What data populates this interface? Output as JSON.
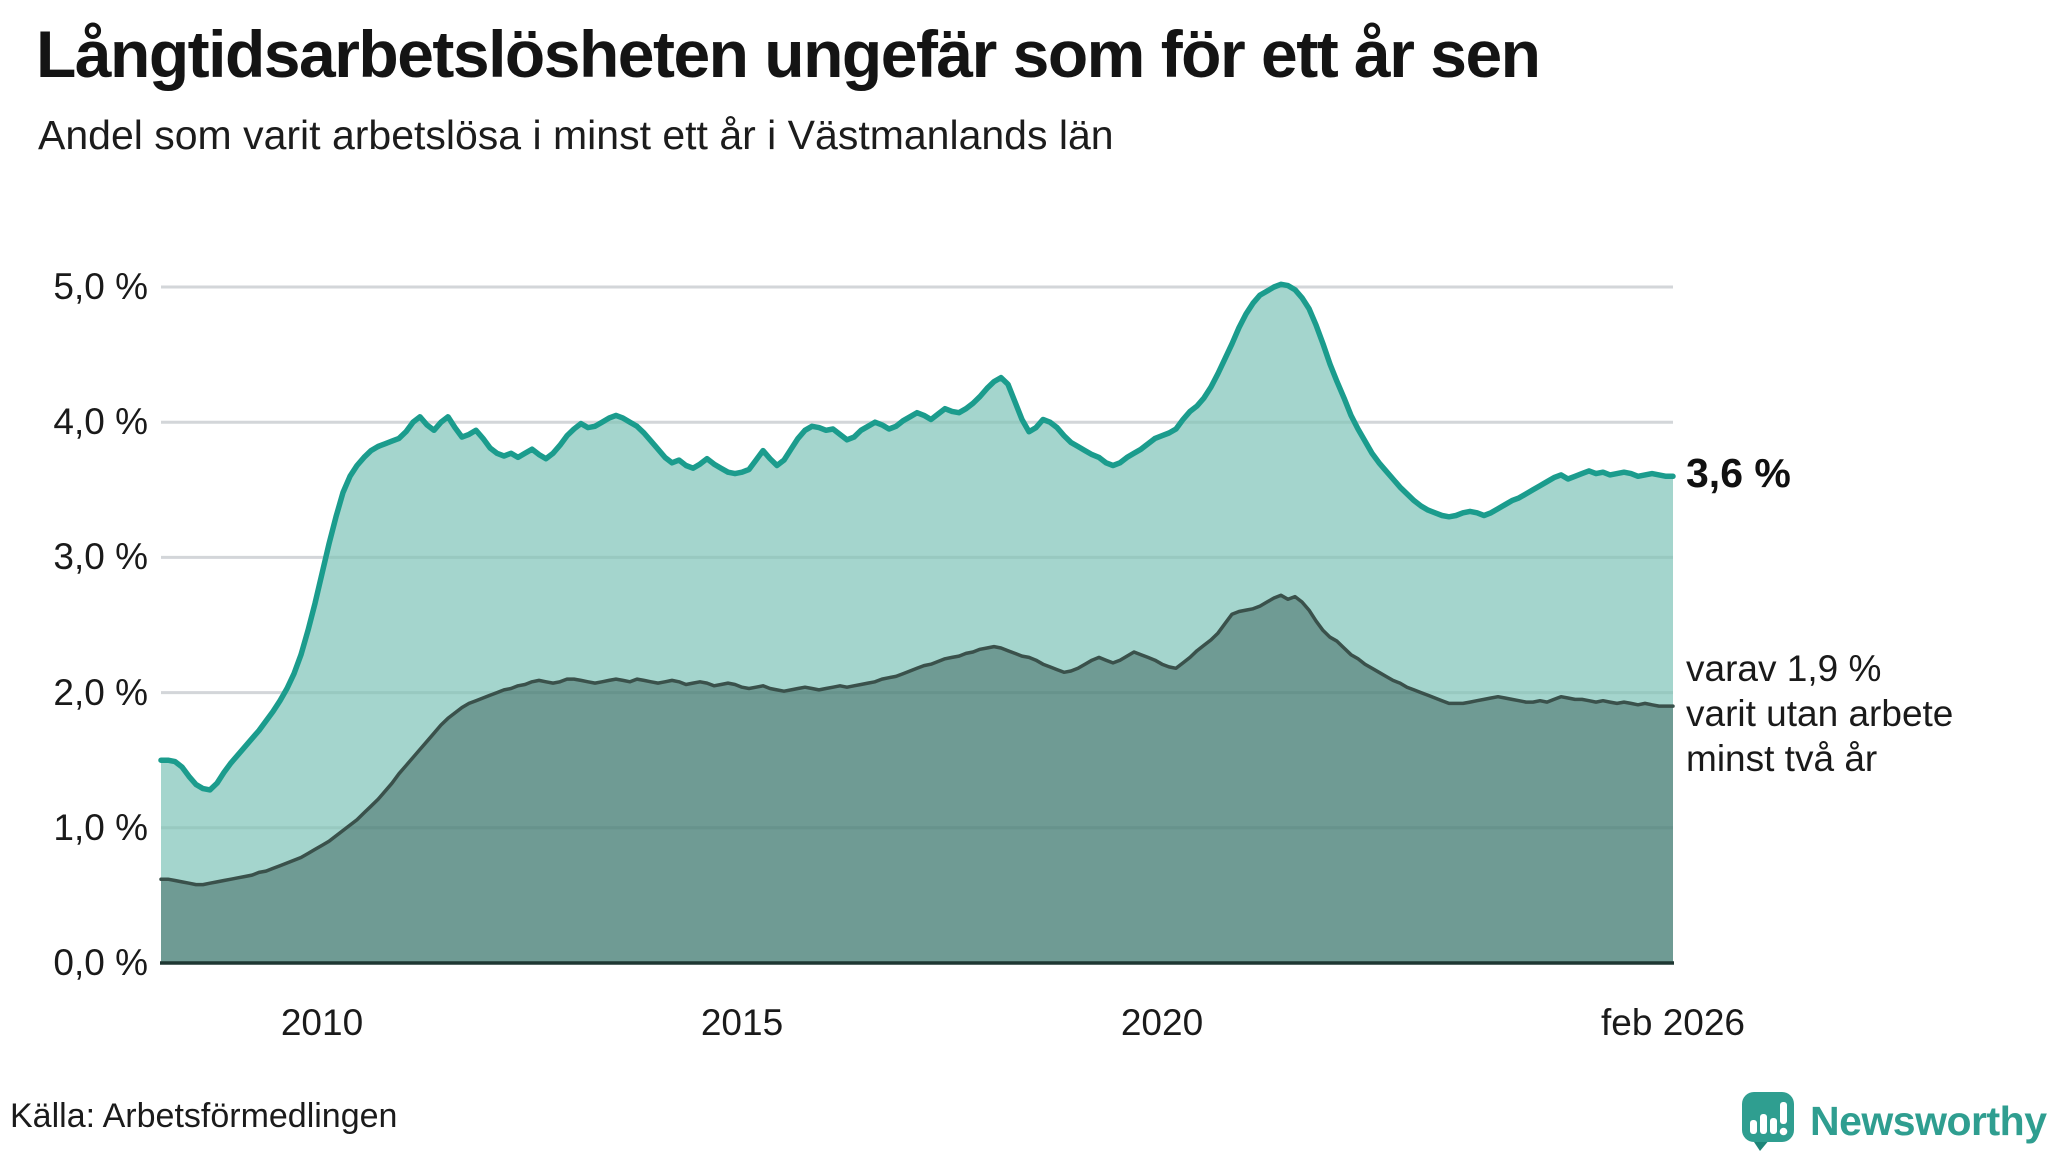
{
  "header": {
    "title": "Långtidsarbetslösheten ungefär som för ett år sen",
    "subtitle": "Andel som varit arbetslösa i minst ett år i Västmanlands län"
  },
  "chart_data": {
    "type": "area",
    "title": "Långtidsarbetslösheten ungefär som för ett år sen",
    "subtitle": "Andel som varit arbetslösa i minst ett år i Västmanlands län",
    "unit": "%",
    "frequency": "monthly",
    "x_start": "2008-02",
    "x_end": "2026-02",
    "ylim": [
      0,
      5.0
    ],
    "grid": "horizontal",
    "legend_position": "none",
    "colors": {
      "line_1yr": "#1b9c8d",
      "fill_1yr": "#a4d5cd",
      "line_2yr": "#3a514b",
      "fill_2yr": "#6f9b94",
      "gridline": "#e4e3e8",
      "baseline": "#1e3732",
      "brand_teal": "#2f9e90"
    },
    "y_ticks": [
      {
        "label": "0,0 %",
        "value": 0
      },
      {
        "label": "1,0 %",
        "value": 1
      },
      {
        "label": "2,0 %",
        "value": 2
      },
      {
        "label": "3,0 %",
        "value": 3
      },
      {
        "label": "4,0 %",
        "value": 4
      },
      {
        "label": "5,0 %",
        "value": 5
      }
    ],
    "x_ticks": [
      {
        "label": "2010",
        "month": 23
      },
      {
        "label": "2015",
        "month": 83
      },
      {
        "label": "2020",
        "month": 143
      },
      {
        "label": "feb 2026",
        "month": 216
      }
    ],
    "series": [
      {
        "name": "Andel arbetslösa minst ett år",
        "end_value_label": "3,6 %",
        "last_value": 3.6,
        "values": [
          1.5,
          1.5,
          1.49,
          1.45,
          1.38,
          1.32,
          1.29,
          1.28,
          1.33,
          1.41,
          1.48,
          1.54,
          1.6,
          1.66,
          1.72,
          1.79,
          1.86,
          1.94,
          2.03,
          2.14,
          2.28,
          2.46,
          2.66,
          2.88,
          3.1,
          3.3,
          3.48,
          3.6,
          3.68,
          3.74,
          3.79,
          3.82,
          3.84,
          3.86,
          3.88,
          3.93,
          4.0,
          4.04,
          3.98,
          3.94,
          4.0,
          4.04,
          3.96,
          3.89,
          3.91,
          3.94,
          3.88,
          3.81,
          3.77,
          3.75,
          3.77,
          3.74,
          3.77,
          3.8,
          3.76,
          3.73,
          3.77,
          3.83,
          3.9,
          3.95,
          3.99,
          3.96,
          3.97,
          4.0,
          4.03,
          4.05,
          4.03,
          4.0,
          3.97,
          3.92,
          3.86,
          3.8,
          3.74,
          3.7,
          3.72,
          3.68,
          3.66,
          3.69,
          3.73,
          3.69,
          3.66,
          3.63,
          3.62,
          3.63,
          3.65,
          3.72,
          3.79,
          3.73,
          3.68,
          3.72,
          3.8,
          3.88,
          3.94,
          3.97,
          3.96,
          3.94,
          3.95,
          3.91,
          3.87,
          3.89,
          3.94,
          3.97,
          4.0,
          3.98,
          3.95,
          3.97,
          4.01,
          4.04,
          4.07,
          4.05,
          4.02,
          4.06,
          4.1,
          4.08,
          4.07,
          4.1,
          4.14,
          4.19,
          4.25,
          4.3,
          4.33,
          4.28,
          4.15,
          4.02,
          3.93,
          3.96,
          4.02,
          4.0,
          3.96,
          3.9,
          3.85,
          3.82,
          3.79,
          3.76,
          3.74,
          3.7,
          3.68,
          3.7,
          3.74,
          3.77,
          3.8,
          3.84,
          3.88,
          3.9,
          3.92,
          3.95,
          4.02,
          4.08,
          4.12,
          4.18,
          4.26,
          4.36,
          4.47,
          4.58,
          4.7,
          4.8,
          4.88,
          4.94,
          4.97,
          5.0,
          5.02,
          5.01,
          4.98,
          4.92,
          4.84,
          4.72,
          4.58,
          4.43,
          4.3,
          4.18,
          4.05,
          3.95,
          3.86,
          3.77,
          3.7,
          3.64,
          3.58,
          3.52,
          3.47,
          3.42,
          3.38,
          3.35,
          3.33,
          3.31,
          3.3,
          3.31,
          3.33,
          3.34,
          3.33,
          3.31,
          3.33,
          3.36,
          3.39,
          3.42,
          3.44,
          3.47,
          3.5,
          3.53,
          3.56,
          3.59,
          3.61,
          3.58,
          3.6,
          3.62,
          3.64,
          3.62,
          3.63,
          3.61,
          3.62,
          3.63,
          3.62,
          3.6,
          3.61,
          3.62,
          3.61,
          3.6,
          3.6
        ]
      },
      {
        "name": "Andel utan arbete minst två år",
        "end_value_label": "1,9 %",
        "last_value": 1.9,
        "values": [
          0.62,
          0.62,
          0.61,
          0.6,
          0.59,
          0.58,
          0.58,
          0.59,
          0.6,
          0.61,
          0.62,
          0.63,
          0.64,
          0.65,
          0.67,
          0.68,
          0.7,
          0.72,
          0.74,
          0.76,
          0.78,
          0.81,
          0.84,
          0.87,
          0.9,
          0.94,
          0.98,
          1.02,
          1.06,
          1.11,
          1.16,
          1.21,
          1.27,
          1.33,
          1.4,
          1.46,
          1.52,
          1.58,
          1.64,
          1.7,
          1.76,
          1.81,
          1.85,
          1.89,
          1.92,
          1.94,
          1.96,
          1.98,
          2.0,
          2.02,
          2.03,
          2.05,
          2.06,
          2.08,
          2.09,
          2.08,
          2.07,
          2.08,
          2.1,
          2.1,
          2.09,
          2.08,
          2.07,
          2.08,
          2.09,
          2.1,
          2.09,
          2.08,
          2.1,
          2.09,
          2.08,
          2.07,
          2.08,
          2.09,
          2.08,
          2.06,
          2.07,
          2.08,
          2.07,
          2.05,
          2.06,
          2.07,
          2.06,
          2.04,
          2.03,
          2.04,
          2.05,
          2.03,
          2.02,
          2.01,
          2.02,
          2.03,
          2.04,
          2.03,
          2.02,
          2.03,
          2.04,
          2.05,
          2.04,
          2.05,
          2.06,
          2.07,
          2.08,
          2.1,
          2.11,
          2.12,
          2.14,
          2.16,
          2.18,
          2.2,
          2.21,
          2.23,
          2.25,
          2.26,
          2.27,
          2.29,
          2.3,
          2.32,
          2.33,
          2.34,
          2.33,
          2.31,
          2.29,
          2.27,
          2.26,
          2.24,
          2.21,
          2.19,
          2.17,
          2.15,
          2.16,
          2.18,
          2.21,
          2.24,
          2.26,
          2.24,
          2.22,
          2.24,
          2.27,
          2.3,
          2.28,
          2.26,
          2.24,
          2.21,
          2.19,
          2.18,
          2.22,
          2.26,
          2.31,
          2.35,
          2.39,
          2.44,
          2.51,
          2.58,
          2.6,
          2.61,
          2.62,
          2.64,
          2.67,
          2.7,
          2.72,
          2.69,
          2.71,
          2.67,
          2.61,
          2.53,
          2.46,
          2.41,
          2.38,
          2.33,
          2.28,
          2.25,
          2.21,
          2.18,
          2.15,
          2.12,
          2.09,
          2.07,
          2.04,
          2.02,
          2.0,
          1.98,
          1.96,
          1.94,
          1.92,
          1.92,
          1.92,
          1.93,
          1.94,
          1.95,
          1.96,
          1.97,
          1.96,
          1.95,
          1.94,
          1.93,
          1.93,
          1.94,
          1.93,
          1.95,
          1.97,
          1.96,
          1.95,
          1.95,
          1.94,
          1.93,
          1.94,
          1.93,
          1.92,
          1.93,
          1.92,
          1.91,
          1.92,
          1.91,
          1.9,
          1.9,
          1.9
        ]
      }
    ],
    "annotations": {
      "end_value_main": "3,6 %",
      "end_note_lines": [
        "varav 1,9 %",
        "varit utan arbete",
        "minst två år"
      ]
    }
  },
  "footer": {
    "source": "Källa: Arbetsförmedlingen",
    "brand": "Newsworthy"
  }
}
